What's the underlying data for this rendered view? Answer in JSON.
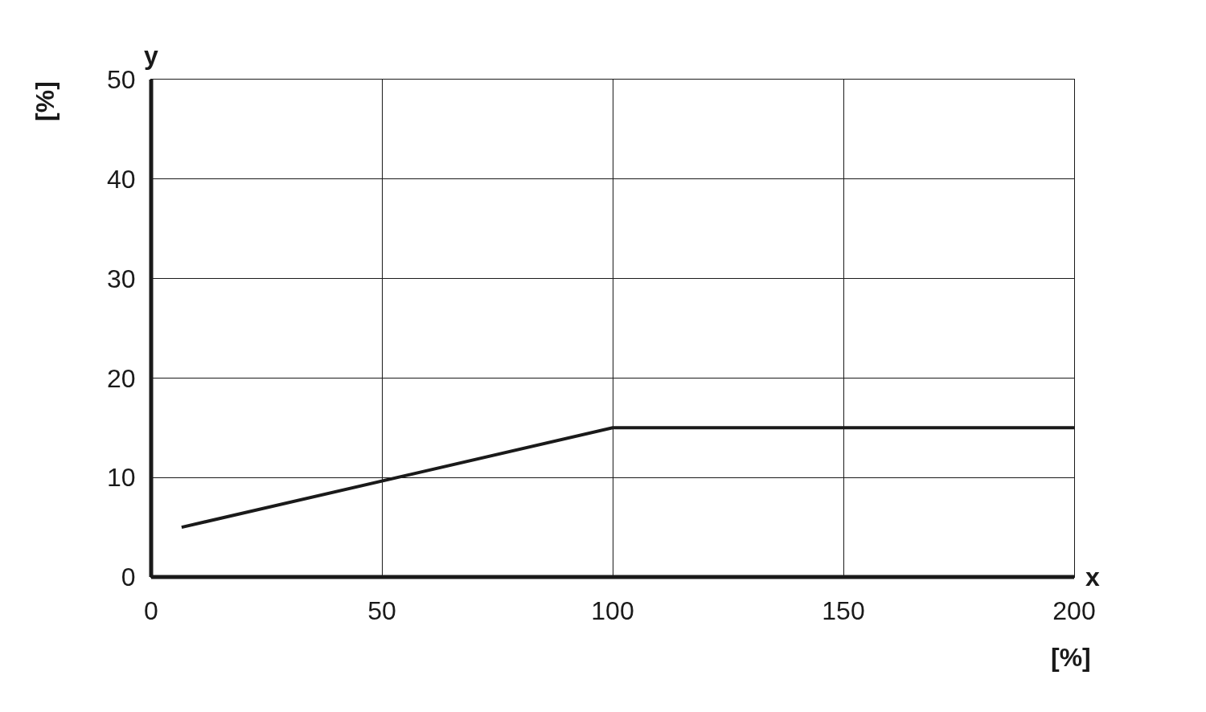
{
  "chart_data": {
    "type": "line",
    "xlabel": "x",
    "ylabel": "y",
    "annotations": [
      "[%]",
      "[%]"
    ],
    "x": [
      6.6,
      100,
      200
    ],
    "series": [
      {
        "color": "#1a1a1a",
        "values": [
          5,
          15,
          15
        ]
      }
    ],
    "xlim": [
      0,
      200
    ],
    "xticks": [
      0,
      50,
      100,
      150,
      200
    ],
    "ylim": [
      0,
      50
    ],
    "yticks": [
      0,
      10,
      20,
      30,
      40,
      50
    ],
    "grid": true,
    "marker": "none",
    "line_style": "solid"
  }
}
